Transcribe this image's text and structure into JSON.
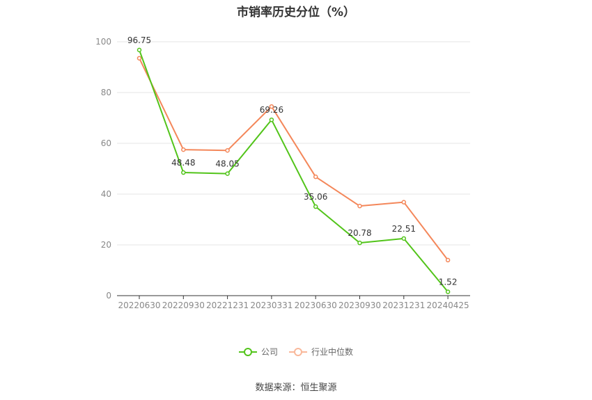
{
  "chart_data": {
    "type": "line",
    "title": "市销率历史分位（%）",
    "categories": [
      "20220630",
      "20220930",
      "20221231",
      "20230331",
      "20230630",
      "20230930",
      "20231231",
      "20240425"
    ],
    "ylim": [
      0,
      100
    ],
    "yticks": [
      0,
      20,
      40,
      60,
      80,
      100
    ],
    "grid": true,
    "legend_position": "bottom",
    "series": [
      {
        "name": "公司",
        "color": "#52c41a",
        "values": [
          96.75,
          48.48,
          48.05,
          69.26,
          35.06,
          20.78,
          22.51,
          1.52
        ],
        "labels": [
          "96.75",
          "48.48",
          "48.05",
          "69.26",
          "35.06",
          "20.78",
          "22.51",
          "1.52"
        ]
      },
      {
        "name": "行业中位数",
        "color": "#f4875a",
        "values": [
          93.5,
          57.5,
          57.2,
          74.5,
          46.8,
          35.3,
          36.8,
          14.0
        ]
      }
    ]
  },
  "source_text": "数据来源：恒生聚源"
}
